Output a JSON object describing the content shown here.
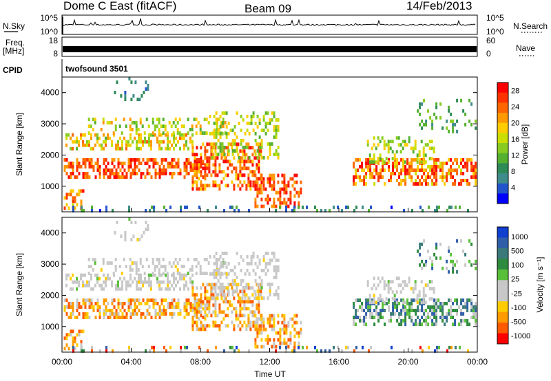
{
  "header": {
    "station": "Dome C East (fitACF)",
    "beam": "Beam 09",
    "date": "14/Feb/2013"
  },
  "colors": {
    "power_scale": [
      "#0000ff",
      "#2255cc",
      "#3f8c8c",
      "#2e8b57",
      "#55b030",
      "#88cc22",
      "#ccdd00",
      "#ffcc00",
      "#ff9900",
      "#ff6600",
      "#ff3300",
      "#ff0000"
    ],
    "velocity_scale": [
      "#1040d0",
      "#2f5fa8",
      "#3a7a7a",
      "#2d8a3e",
      "#58c038",
      "#c8c8c8",
      "#c8c8c8",
      "#ffcc00",
      "#ff9a00",
      "#ff5a00",
      "#ff0000"
    ]
  },
  "chart_data": [
    {
      "type": "line",
      "name_left": "N.Sky",
      "name_right": "N.Search",
      "left_ticks": [
        "10^5",
        "10^0"
      ],
      "right_ticks": [
        "10^5",
        "10^0"
      ]
    },
    {
      "type": "line",
      "name_left": "Freq.",
      "unit_left": "[MHz]",
      "name_right": "Nave",
      "left_ticks": [
        "18",
        "8"
      ],
      "right_ticks": [
        "60",
        "0"
      ]
    },
    {
      "type": "table",
      "name_left": "CPID",
      "program": "twofsound 3501"
    },
    {
      "type": "heatmap",
      "ylabel": "Slant Range [km]",
      "ylim": [
        180,
        4500
      ],
      "yticks": [
        1000,
        2000,
        3000,
        4000
      ],
      "xlim": [
        0,
        24
      ],
      "colorbar_label": "Power [dB]",
      "colorbar_ticks": [
        4,
        8,
        12,
        16,
        20,
        24,
        28
      ],
      "colorbar_range": [
        0,
        30
      ]
    },
    {
      "type": "heatmap",
      "ylabel": "Slant Range [km]",
      "ylim": [
        180,
        4500
      ],
      "yticks": [
        1000,
        2000,
        3000,
        4000
      ],
      "xlim": [
        0,
        24
      ],
      "xticks": [
        "00:00",
        "04:00",
        "08:00",
        "12:00",
        "16:00",
        "20:00",
        "00:00"
      ],
      "xlabel": "Time UT",
      "colorbar_label": "Velocity [m s⁻¹]",
      "colorbar_ticks": [
        "1000",
        "500",
        "100",
        "25",
        "-25",
        "-100",
        "-500",
        "-1000"
      ]
    }
  ]
}
